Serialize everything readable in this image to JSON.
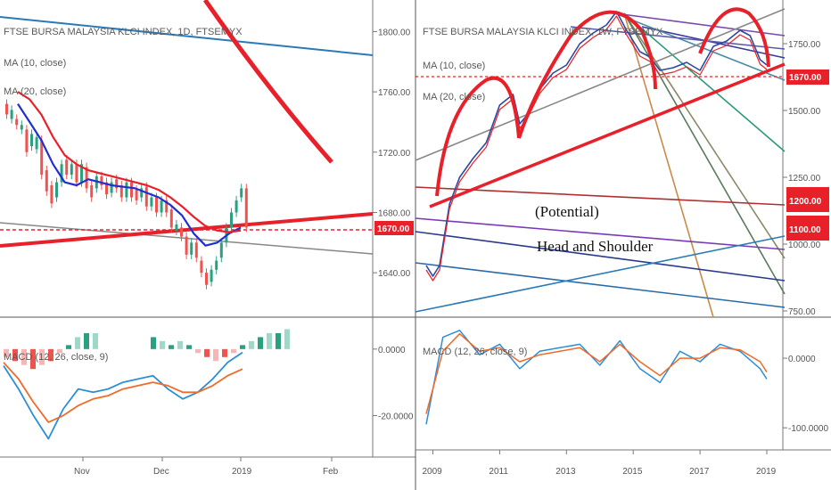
{
  "left": {
    "title": "FTSE BURSA MALAYSIA KLCI INDEX, 1D, FTSEMYX",
    "ma10_label": "MA (10, close)",
    "ma20_label": "MA (20, close)",
    "macd_label": "MACD (12, 26, close, 9)",
    "price_badge": "1670.00",
    "colors": {
      "ma10": "#1f2fd0",
      "ma20": "#e8202a",
      "macd": "#2b8fd6",
      "signal": "#f06a2a",
      "trend": "#e8202a"
    }
  },
  "right": {
    "title": "FTSE BURSA MALAYSIA KLCI INDEX, 1W, FTSEMYX",
    "ma10_label": "MA (10, close)",
    "ma20_label": "MA (20, close)",
    "macd_label": "MACD (12, 26, close, 9)",
    "annotation_line1": "(Potential)",
    "annotation_line2": "Head and Shoulder",
    "price_badge": "1670.00",
    "badge_1200": "1200.00",
    "badge_1100": "1100.00"
  },
  "chart_data": [
    {
      "type": "candlestick",
      "title": "FTSE BURSA MALAYSIA KLCI INDEX, 1D, FTSEMYX",
      "x_tick_labels": [
        "Nov",
        "Dec",
        "2019",
        "Feb"
      ],
      "y_tick_labels": [
        "1800.00",
        "1760.00",
        "1720.00",
        "1680.00",
        "1640.00"
      ],
      "ylim": [
        1620,
        1815
      ],
      "series": [
        {
          "name": "MA (10, close)",
          "values": [
            1752,
            1740,
            1728,
            1712,
            1700,
            1698,
            1702,
            1700,
            1698,
            1697,
            1696,
            1693,
            1690,
            1685,
            1678,
            1666,
            1658,
            1660,
            1666,
            1670
          ]
        },
        {
          "name": "MA (20, close)",
          "values": [
            1760,
            1755,
            1745,
            1730,
            1718,
            1712,
            1708,
            1706,
            1704,
            1702,
            1700,
            1698,
            1695,
            1690,
            1684,
            1677,
            1671,
            1668,
            1667,
            1668
          ]
        }
      ],
      "current_price": 1670.0
    },
    {
      "type": "bar",
      "title": "MACD (12, 26, close, 9)",
      "y_tick_labels": [
        "0.0000",
        "-20.0000"
      ],
      "ylim": [
        -29,
        8
      ],
      "series": [
        {
          "name": "MACD",
          "values": [
            -5,
            -12,
            -20,
            -27,
            -18,
            -12,
            -13,
            -12,
            -10,
            -9,
            -8,
            -12,
            -15,
            -13,
            -9,
            -4,
            -1
          ]
        },
        {
          "name": "Signal",
          "values": [
            -4,
            -9,
            -16,
            -22,
            -20,
            -17,
            -15,
            -14,
            -12,
            -11,
            -10,
            -11,
            -13,
            -13,
            -11,
            -8,
            -6
          ]
        }
      ]
    },
    {
      "type": "line",
      "title": "FTSE BURSA MALAYSIA KLCI INDEX, 1W, FTSEMYX",
      "x_tick_labels": [
        "2009",
        "2011",
        "2013",
        "2015",
        "2017",
        "2019"
      ],
      "y_tick_labels": [
        "1750.00",
        "1500.00",
        "1250.00",
        "1000.00",
        "750.00"
      ],
      "ylim": [
        740,
        1890
      ],
      "x": [
        2008.8,
        2009.0,
        2009.2,
        2009.5,
        2009.8,
        2010.2,
        2010.6,
        2011.0,
        2011.4,
        2011.6,
        2011.8,
        2012.2,
        2012.6,
        2013.0,
        2013.4,
        2013.8,
        2014.2,
        2014.5,
        2014.8,
        2015.2,
        2015.5,
        2015.8,
        2016.2,
        2016.6,
        2017.0,
        2017.4,
        2017.8,
        2018.2,
        2018.5,
        2018.8,
        2019.0
      ],
      "series": [
        {
          "name": "Close",
          "values": [
            920,
            880,
            920,
            1150,
            1250,
            1320,
            1380,
            1520,
            1560,
            1450,
            1480,
            1580,
            1640,
            1670,
            1750,
            1790,
            1820,
            1870,
            1800,
            1720,
            1700,
            1650,
            1660,
            1680,
            1650,
            1740,
            1760,
            1800,
            1780,
            1690,
            1670
          ]
        }
      ],
      "annotations": [
        "(Potential)",
        "Head and Shoulder"
      ],
      "levels": [
        1670.0,
        1200.0,
        1100.0
      ]
    },
    {
      "type": "line",
      "title": "MACD (12, 26, close, 9)",
      "y_tick_labels": [
        "0.0000",
        "-100.0000"
      ],
      "ylim": [
        -110,
        50
      ],
      "x": [
        2008.8,
        2009.3,
        2009.8,
        2010.4,
        2011.0,
        2011.6,
        2012.2,
        2012.8,
        2013.4,
        2014.0,
        2014.6,
        2015.2,
        2015.8,
        2016.4,
        2017.0,
        2017.6,
        2018.2,
        2018.8,
        2019.0
      ],
      "series": [
        {
          "name": "MACD",
          "values": [
            -95,
            30,
            40,
            5,
            20,
            -15,
            10,
            15,
            20,
            -10,
            25,
            -15,
            -35,
            10,
            -5,
            20,
            10,
            -15,
            -30
          ]
        },
        {
          "name": "Signal",
          "values": [
            -80,
            10,
            35,
            10,
            15,
            -5,
            5,
            10,
            15,
            -5,
            20,
            -5,
            -25,
            0,
            0,
            15,
            12,
            -5,
            -20
          ]
        }
      ]
    }
  ]
}
